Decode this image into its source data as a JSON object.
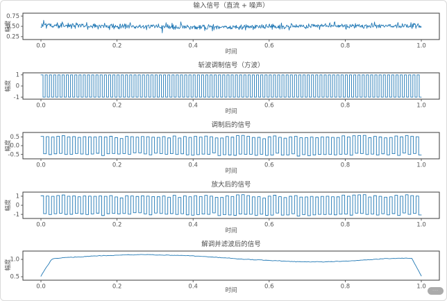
{
  "style": {
    "line_color": "#1f77b4",
    "spine_color": "#3a3a3a",
    "tick_color": "#3a3a3a",
    "text_color": "#4d4d4d",
    "tick_label_color": "#555555",
    "background": "#ffffff"
  },
  "corner_badge": {
    "text": "···"
  },
  "chart_data": [
    {
      "type": "line",
      "title": "输入信号（直流 + 噪声）",
      "xlabel": "时间",
      "ylabel": "幅度",
      "xlim": [
        0,
        1
      ],
      "ylim": [
        0.18,
        0.82
      ],
      "xticks": {
        "values": [
          0,
          0.2,
          0.4,
          0.6,
          0.8,
          1.0
        ],
        "labels": [
          "0.0",
          "0.2",
          "0.4",
          "0.6",
          "0.8",
          "1.0"
        ]
      },
      "yticks": {
        "values": [
          0.75,
          0.5,
          0.25
        ],
        "labels": [
          "0.75",
          "0.50",
          "0.25"
        ]
      },
      "grid": false,
      "legend": null,
      "signal": {
        "kind": "dc_noise",
        "dc": 0.5,
        "noise_std": 0.035,
        "points": 700,
        "seed": 7
      }
    },
    {
      "type": "line",
      "title": "斩波调制信号（方波）",
      "xlabel": "时间",
      "ylabel": "幅度",
      "xlim": [
        0,
        1
      ],
      "ylim": [
        -1.18,
        1.18
      ],
      "xticks": {
        "values": [
          0,
          0.2,
          0.4,
          0.6,
          0.8,
          1.0
        ],
        "labels": [
          "0.0",
          "0.2",
          "0.4",
          "0.6",
          "0.8",
          "1.0"
        ]
      },
      "yticks": {
        "values": [
          1,
          0,
          -1
        ],
        "labels": [
          "1",
          "0",
          "-1"
        ]
      },
      "grid": false,
      "legend": null,
      "signal": {
        "kind": "square",
        "cycles": 90,
        "amp": 1
      }
    },
    {
      "type": "line",
      "title": "调制后的信号",
      "xlabel": "时间",
      "ylabel": "幅度",
      "xlim": [
        0,
        1
      ],
      "ylim": [
        -0.75,
        0.75
      ],
      "xticks": {
        "values": [
          0,
          0.2,
          0.4,
          0.6,
          0.8,
          1.0
        ],
        "labels": [
          "0.0",
          "0.2",
          "0.4",
          "0.6",
          "0.8",
          "1.0"
        ]
      },
      "yticks": {
        "values": [
          0.5,
          0.0,
          -0.5
        ],
        "labels": [
          "0.5",
          "0.0",
          "-0.5"
        ]
      },
      "grid": false,
      "legend": null,
      "signal": {
        "kind": "chopped",
        "dc": 0.5,
        "noise_std": 0.04,
        "cycles": 72,
        "gain": 1,
        "seed": 11
      }
    },
    {
      "type": "line",
      "title": "放大后的信号",
      "xlabel": "时间",
      "ylabel": "幅度",
      "xlim": [
        0,
        1
      ],
      "ylim": [
        -1.45,
        1.45
      ],
      "xticks": {
        "values": [
          0,
          0.2,
          0.4,
          0.6,
          0.8,
          1.0
        ],
        "labels": [
          "0.0",
          "0.2",
          "0.4",
          "0.6",
          "0.8",
          "1.0"
        ]
      },
      "yticks": {
        "values": [
          1,
          0,
          -1
        ],
        "labels": [
          "1",
          "0",
          "-1"
        ]
      },
      "grid": false,
      "legend": null,
      "signal": {
        "kind": "chopped",
        "dc": 0.5,
        "noise_std": 0.04,
        "cycles": 72,
        "gain": 2,
        "seed": 11
      }
    },
    {
      "type": "line",
      "title": "解调并滤波后的信号",
      "xlabel": "时间",
      "ylabel": "幅度",
      "xlim": [
        0,
        1
      ],
      "ylim": [
        0.4,
        1.24
      ],
      "xticks": {
        "values": [
          0,
          0.2,
          0.4,
          0.6,
          0.8,
          1.0
        ],
        "labels": [
          "0.0",
          "0.2",
          "0.4",
          "0.6",
          "0.8",
          "1.0"
        ]
      },
      "yticks": {
        "values": [
          1.0,
          0.5
        ],
        "labels": [
          "1.0",
          "0.5"
        ]
      },
      "grid": false,
      "legend": null,
      "box": {
        "top": 17,
        "height": 42
      },
      "signal": {
        "kind": "smooth",
        "noise_std": 0.004,
        "seed": 3,
        "points": [
          [
            0.0,
            0.52
          ],
          [
            0.01,
            0.7
          ],
          [
            0.03,
            1.02
          ],
          [
            0.06,
            1.05
          ],
          [
            0.1,
            1.07
          ],
          [
            0.14,
            1.1
          ],
          [
            0.18,
            1.11
          ],
          [
            0.22,
            1.13
          ],
          [
            0.26,
            1.14
          ],
          [
            0.3,
            1.13
          ],
          [
            0.34,
            1.12
          ],
          [
            0.38,
            1.11
          ],
          [
            0.42,
            1.09
          ],
          [
            0.46,
            1.06
          ],
          [
            0.5,
            1.03
          ],
          [
            0.54,
            1.0
          ],
          [
            0.58,
            0.98
          ],
          [
            0.62,
            0.96
          ],
          [
            0.66,
            0.94
          ],
          [
            0.7,
            0.93
          ],
          [
            0.74,
            0.93
          ],
          [
            0.78,
            0.94
          ],
          [
            0.82,
            0.96
          ],
          [
            0.86,
            0.99
          ],
          [
            0.9,
            1.02
          ],
          [
            0.93,
            1.03
          ],
          [
            0.96,
            1.04
          ],
          [
            0.975,
            1.03
          ],
          [
            1.0,
            0.52
          ]
        ]
      }
    }
  ]
}
